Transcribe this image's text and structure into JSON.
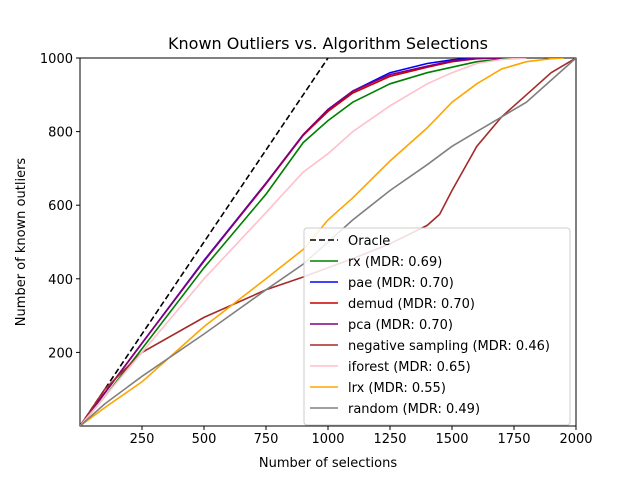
{
  "chart_data": {
    "type": "line",
    "title": "Known Outliers vs. Algorithm Selections",
    "xlabel": "Number of selections",
    "ylabel": "Number of known outliers",
    "xlim": [
      0,
      2000
    ],
    "ylim": [
      0,
      1000
    ],
    "xticks": [
      250,
      500,
      750,
      1000,
      1250,
      1500,
      1750,
      2000
    ],
    "yticks": [
      200,
      400,
      600,
      800,
      1000
    ],
    "grid": false,
    "legend_position": "lower-right",
    "series": [
      {
        "name": "Oracle",
        "color": "#000000",
        "dashed": true,
        "x": [
          0,
          1000
        ],
        "y": [
          0,
          1000
        ]
      },
      {
        "name": "rx (MDR: 0.69)",
        "color": "#008000",
        "x": [
          0,
          100,
          250,
          500,
          750,
          900,
          1000,
          1100,
          1250,
          1400,
          1500,
          1600,
          1700,
          1800
        ],
        "y": [
          0,
          80,
          210,
          430,
          630,
          770,
          830,
          880,
          930,
          960,
          975,
          990,
          997,
          1000
        ]
      },
      {
        "name": "pae (MDR: 0.70)",
        "color": "#0000ff",
        "x": [
          0,
          100,
          250,
          500,
          750,
          900,
          1000,
          1100,
          1250,
          1400,
          1500,
          1600,
          1700
        ],
        "y": [
          0,
          90,
          225,
          450,
          660,
          790,
          860,
          910,
          960,
          985,
          995,
          1000,
          1000
        ]
      },
      {
        "name": "demud (MDR: 0.70)",
        "color": "#cc0000",
        "x": [
          0,
          100,
          250,
          500,
          750,
          900,
          1000,
          1100,
          1250,
          1400,
          1500,
          1600,
          1700
        ],
        "y": [
          0,
          90,
          225,
          448,
          658,
          790,
          855,
          905,
          950,
          975,
          990,
          998,
          1000
        ]
      },
      {
        "name": "pca (MDR: 0.70)",
        "color": "#800080",
        "x": [
          0,
          100,
          250,
          500,
          750,
          900,
          1000,
          1100,
          1250,
          1400,
          1500,
          1600,
          1700
        ],
        "y": [
          0,
          90,
          225,
          448,
          660,
          792,
          860,
          910,
          955,
          978,
          992,
          999,
          1000
        ]
      },
      {
        "name": "negative sampling (MDR: 0.46)",
        "color": "#a52a2a",
        "x": [
          0,
          100,
          250,
          500,
          750,
          900,
          1000,
          1100,
          1250,
          1400,
          1450,
          1500,
          1600,
          1700,
          1800,
          1900,
          2000
        ],
        "y": [
          0,
          100,
          200,
          295,
          370,
          405,
          430,
          455,
          495,
          545,
          575,
          640,
          760,
          840,
          900,
          960,
          1000
        ]
      },
      {
        "name": "iforest (MDR: 0.65)",
        "color": "#ffc0cb",
        "x": [
          0,
          100,
          250,
          500,
          750,
          900,
          1000,
          1100,
          1250,
          1400,
          1500,
          1600,
          1700,
          1800
        ],
        "y": [
          0,
          80,
          200,
          400,
          580,
          690,
          740,
          800,
          870,
          930,
          960,
          985,
          996,
          1000
        ]
      },
      {
        "name": "lrx (MDR: 0.55)",
        "color": "#ffa500",
        "x": [
          0,
          100,
          250,
          500,
          750,
          900,
          1000,
          1100,
          1250,
          1400,
          1500,
          1600,
          1700,
          1800,
          1900,
          1950
        ],
        "y": [
          0,
          50,
          120,
          270,
          400,
          480,
          560,
          620,
          720,
          810,
          880,
          930,
          970,
          990,
          998,
          1000
        ]
      },
      {
        "name": "random (MDR: 0.49)",
        "color": "#808080",
        "x": [
          0,
          100,
          250,
          500,
          750,
          900,
          1000,
          1100,
          1250,
          1400,
          1500,
          1600,
          1700,
          1800,
          1900,
          2000
        ],
        "y": [
          0,
          60,
          135,
          250,
          370,
          440,
          500,
          560,
          640,
          710,
          760,
          800,
          840,
          880,
          940,
          1000
        ]
      }
    ]
  }
}
